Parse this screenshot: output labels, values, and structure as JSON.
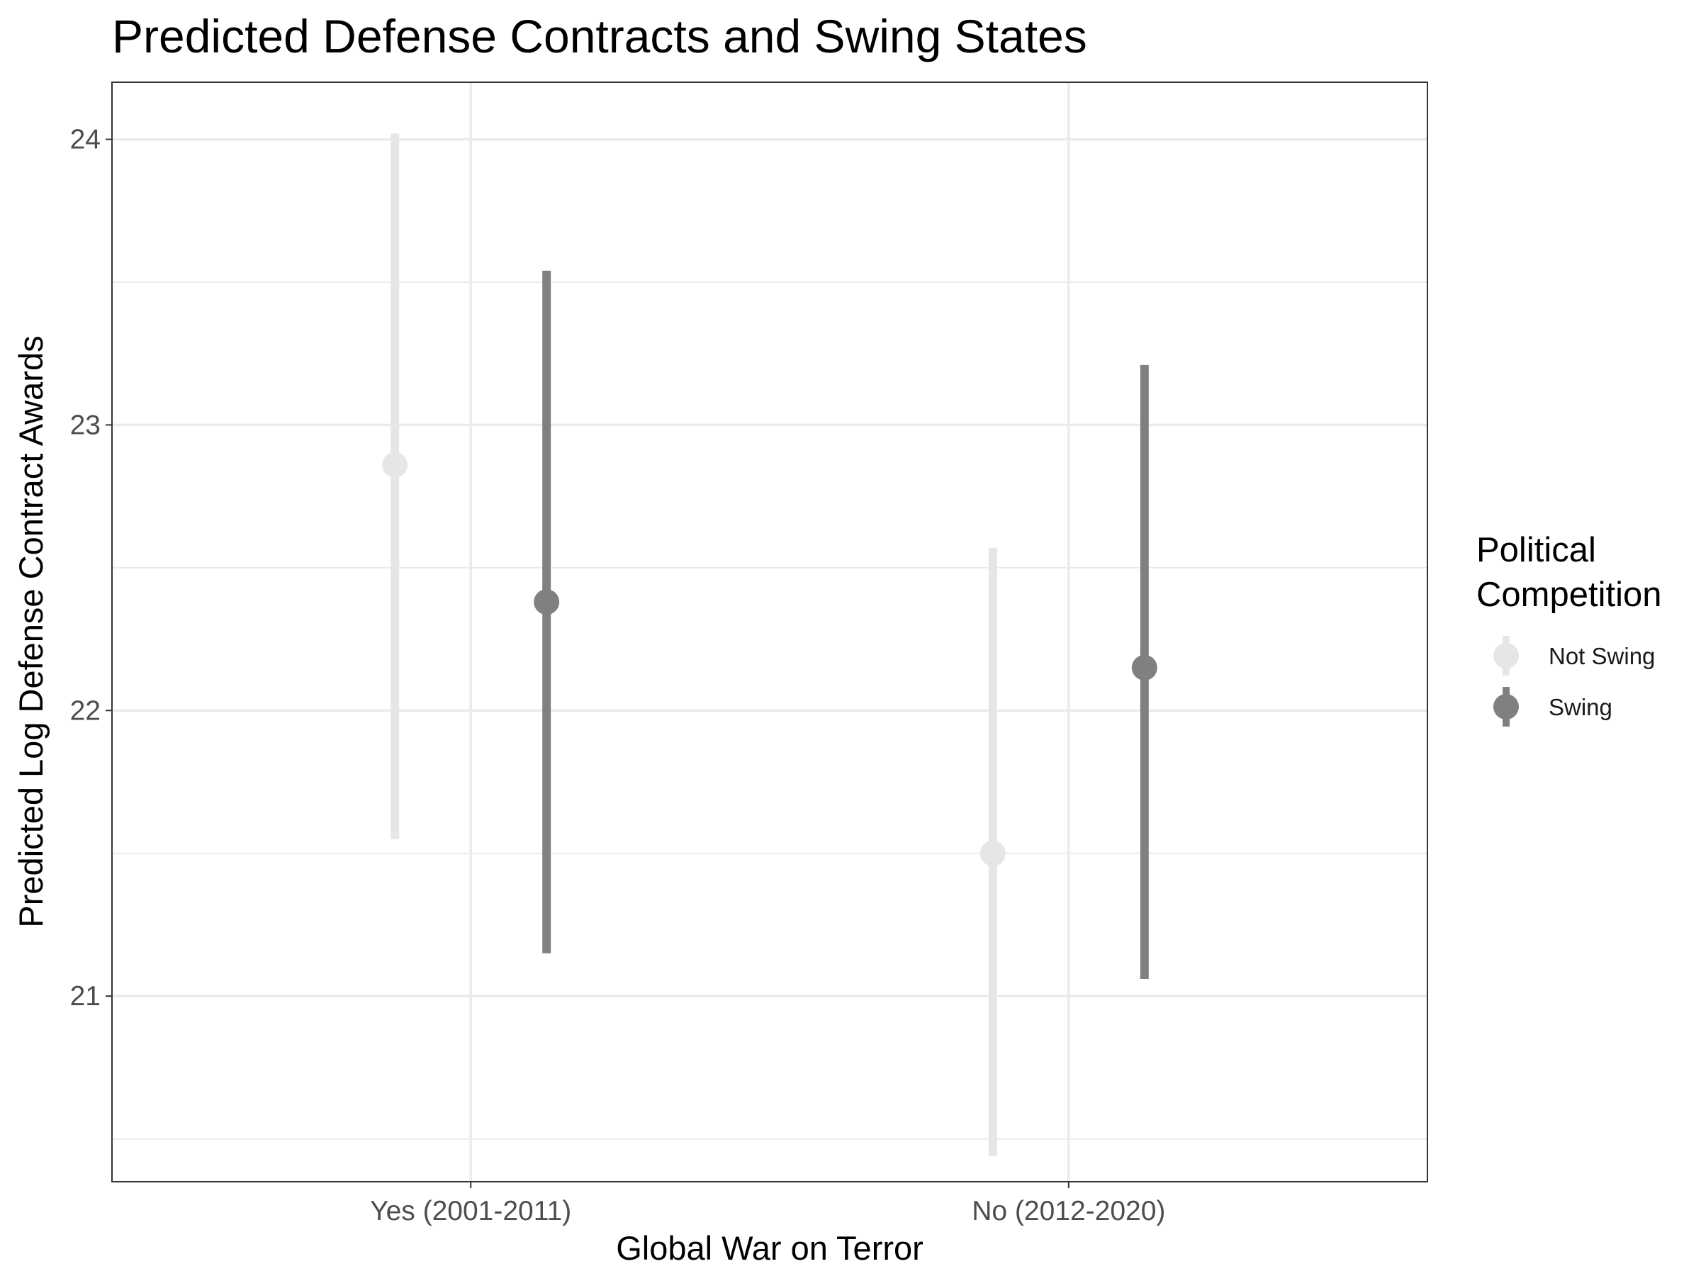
{
  "chart_data": {
    "type": "pointrange",
    "title": "Predicted Defense Contracts and Swing States",
    "xlabel": "Global War on Terror",
    "ylabel": "Predicted Log Defense Contract Awards",
    "categories": [
      "Yes (2001-2011)",
      "No (2012-2020)"
    ],
    "ylim": [
      20.35,
      24.2
    ],
    "yticks": [
      21,
      22,
      23,
      24
    ],
    "grid": true,
    "legend": {
      "title_lines": [
        "Political",
        "Competition"
      ],
      "placement": "right"
    },
    "series": [
      {
        "name": "Not Swing",
        "color": "#e6e6e6",
        "points": [
          {
            "category": "Yes (2001-2011)",
            "estimate": 22.86,
            "lower": 21.55,
            "upper": 24.02
          },
          {
            "category": "No (2012-2020)",
            "estimate": 21.5,
            "lower": 20.44,
            "upper": 22.57
          }
        ]
      },
      {
        "name": "Swing",
        "color": "#808080",
        "points": [
          {
            "category": "Yes (2001-2011)",
            "estimate": 22.38,
            "lower": 21.15,
            "upper": 23.54
          },
          {
            "category": "No (2012-2020)",
            "estimate": 22.15,
            "lower": 21.06,
            "upper": 23.21
          }
        ]
      }
    ]
  }
}
